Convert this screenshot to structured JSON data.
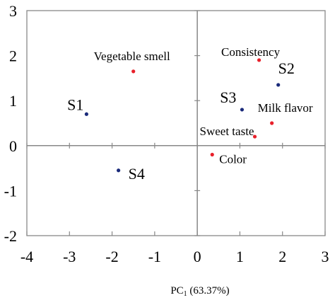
{
  "chart_data": {
    "type": "scatter",
    "xlabel_prefix": "PC",
    "xlabel_sub": "1",
    "xlabel_suffix": " (63.37%)",
    "ylabel": "",
    "xlim": [
      -4,
      3
    ],
    "ylim": [
      -2,
      3
    ],
    "x_ticks": [
      "-4",
      "-3",
      "-2",
      "-1",
      "0",
      "1",
      "2",
      "3"
    ],
    "y_ticks": [
      "-2",
      "-1",
      "0",
      "1",
      "2",
      "3"
    ],
    "grid": false,
    "series": [
      {
        "kind": "samples",
        "color": "#1a2a7a",
        "points": [
          {
            "label": "S1",
            "x": -2.6,
            "y": 0.7
          },
          {
            "label": "S2",
            "x": 1.9,
            "y": 1.35
          },
          {
            "label": "S3",
            "x": 1.05,
            "y": 0.8
          },
          {
            "label": "S4",
            "x": -1.85,
            "y": -0.55
          }
        ]
      },
      {
        "kind": "attributes",
        "color": "#e8202a",
        "points": [
          {
            "label": "Vegetable smell",
            "x": -1.5,
            "y": 1.65
          },
          {
            "label": "Consistency",
            "x": 1.45,
            "y": 1.9
          },
          {
            "label": "Milk flavor",
            "x": 1.75,
            "y": 0.5
          },
          {
            "label": "Sweet taste",
            "x": 1.35,
            "y": 0.2
          },
          {
            "label": "Color",
            "x": 0.35,
            "y": -0.2
          }
        ]
      }
    ]
  }
}
